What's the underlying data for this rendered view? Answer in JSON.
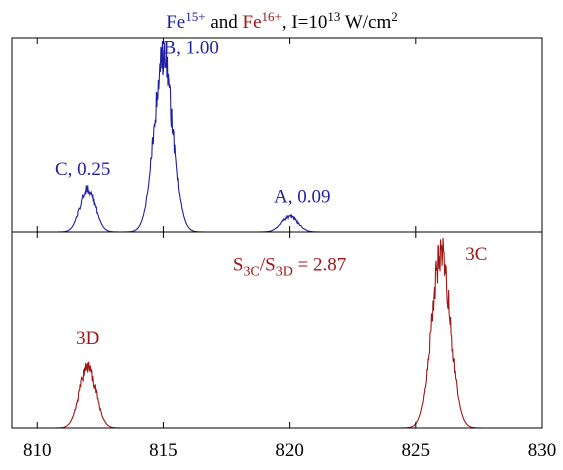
{
  "chart_data": {
    "type": "line",
    "title": {
      "s1_base": "Fe",
      "s1_sup": "15+",
      "mid": " and ",
      "s2_base": "Fe",
      "s2_sup": "16+",
      "rest": ", I=10",
      "exp": "13",
      "unit": " W/cm",
      "unit_sup": "2"
    },
    "xlim": [
      809,
      830
    ],
    "xticks": [
      810,
      815,
      820,
      825,
      830
    ],
    "xticklabels": [
      "810",
      "815",
      "820",
      "825",
      "830"
    ],
    "colors": {
      "top": "#1f1fa0",
      "bottom": "#a01515",
      "axis": "#000000"
    },
    "panels": [
      {
        "series_color": "top",
        "ylim": [
          0,
          1.12
        ],
        "peaks": [
          {
            "center": 812.0,
            "height": 0.25,
            "width": 0.42
          },
          {
            "center": 815.0,
            "height": 1.0,
            "width": 0.52
          },
          {
            "center": 820.0,
            "height": 0.09,
            "width": 0.45
          }
        ],
        "annotations": [
          {
            "text": "C, 0.25",
            "x": 811.8,
            "y": 0.33
          },
          {
            "text": "B, 1.00",
            "x": 816.1,
            "y": 1.03
          },
          {
            "text": "A, 0.09",
            "x": 820.5,
            "y": 0.17
          }
        ]
      },
      {
        "series_color": "bottom",
        "ylim": [
          0,
          1.12
        ],
        "peaks": [
          {
            "center": 812.0,
            "height": 0.35,
            "width": 0.45
          },
          {
            "center": 826.0,
            "height": 1.0,
            "width": 0.52
          }
        ],
        "annotations": [
          {
            "text": "3D",
            "x": 812.0,
            "y": 0.48
          },
          {
            "text": "3C",
            "x": 827.4,
            "y": 0.96
          }
        ],
        "ratio": {
          "s": "S",
          "sub1": "3C",
          "slash": "/S",
          "sub2": "3D",
          "value": " = 2.87",
          "x": 820.0,
          "y": 0.9
        }
      }
    ]
  }
}
